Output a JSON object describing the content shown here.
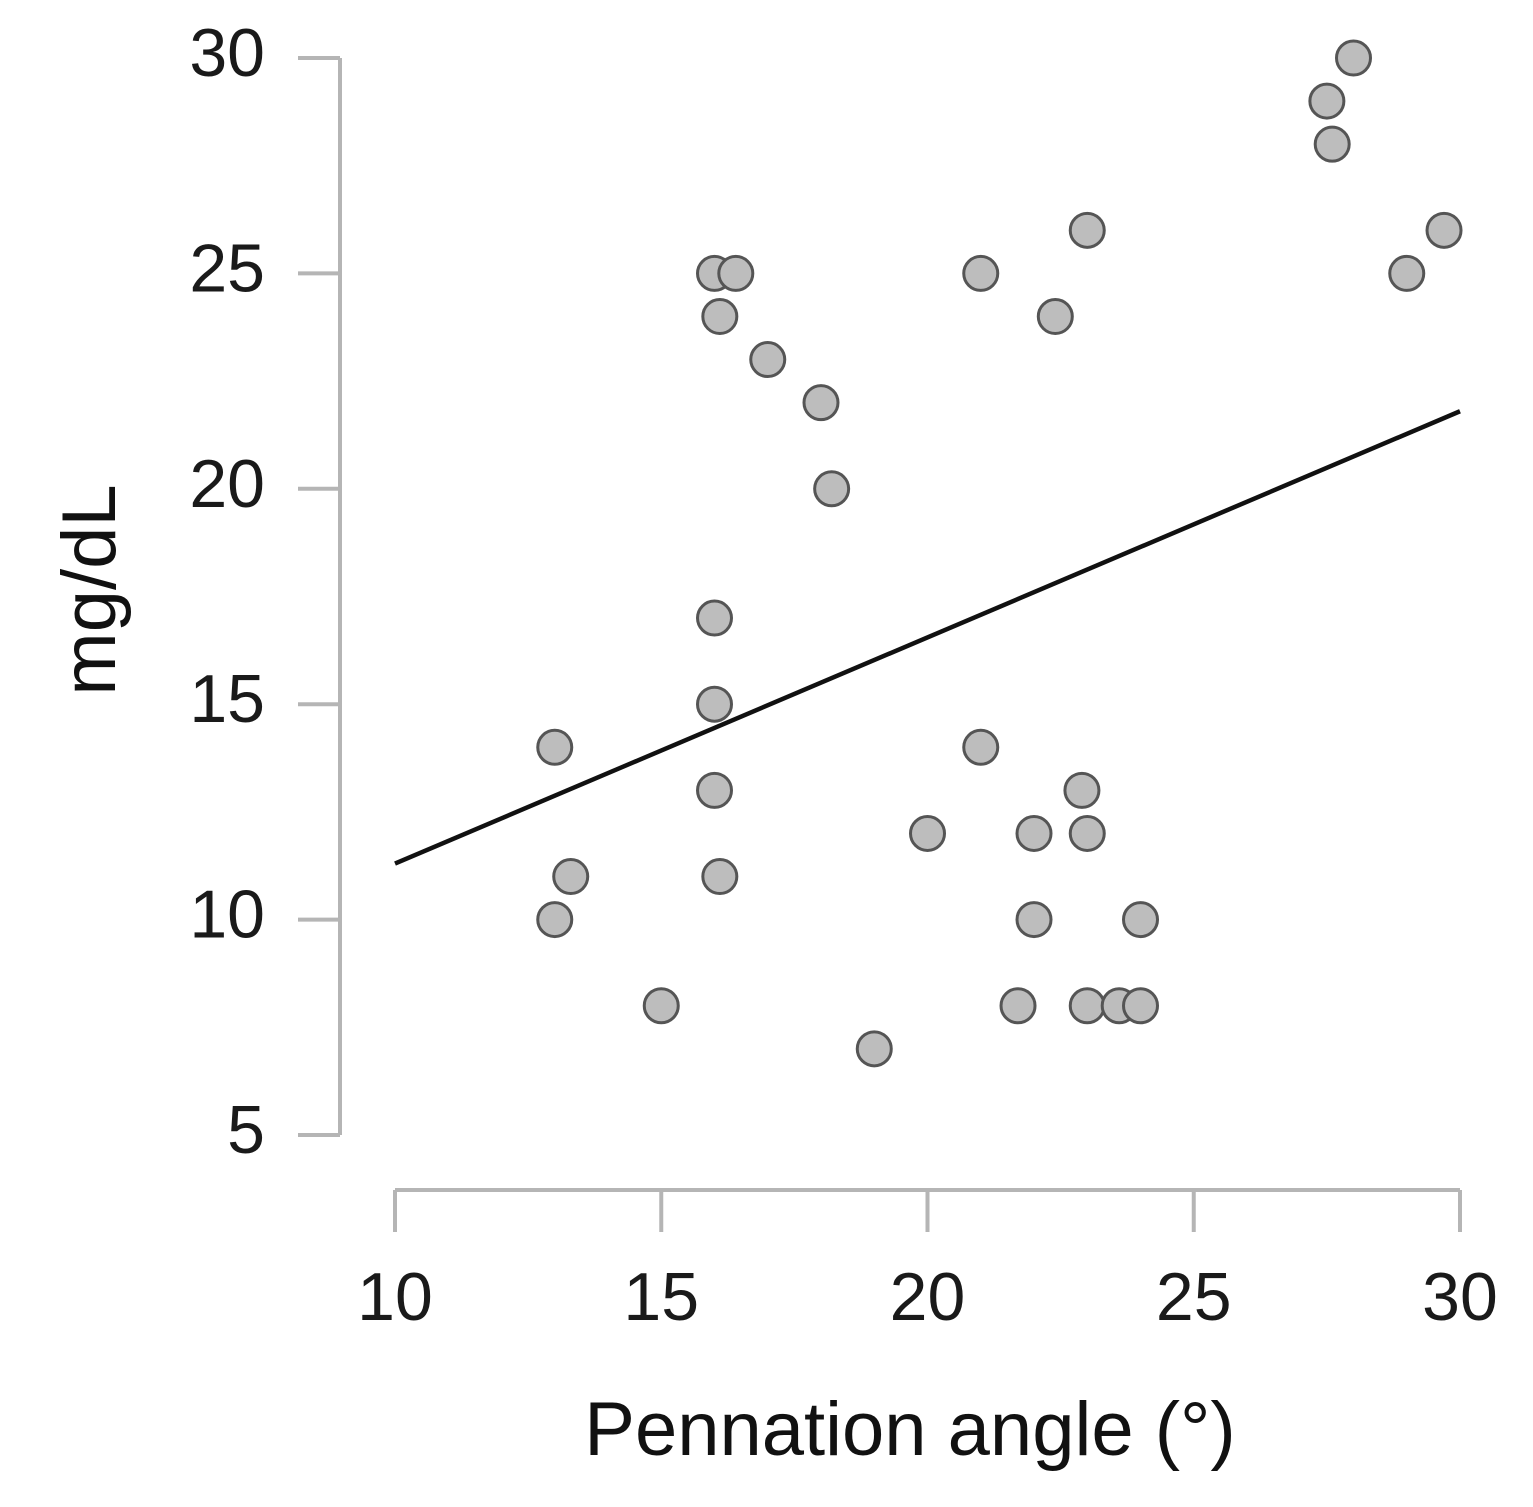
{
  "chart_data": {
    "type": "scatter",
    "title": "",
    "xlabel": "Pennation angle (°)",
    "ylabel": "mg/dL",
    "xlim": [
      10,
      30
    ],
    "ylim": [
      5,
      30
    ],
    "xticks": [
      10,
      15,
      20,
      25,
      30
    ],
    "yticks": [
      5,
      10,
      15,
      20,
      25,
      30
    ],
    "grid": false,
    "legend": "none",
    "point_color": "#bdbdbd",
    "point_edge_color": "#555555",
    "axis_color": "#b5b5b5",
    "line_color": "#111111",
    "points": [
      {
        "x": 13.0,
        "y": 14
      },
      {
        "x": 13.3,
        "y": 11
      },
      {
        "x": 13.0,
        "y": 10
      },
      {
        "x": 15.0,
        "y": 8
      },
      {
        "x": 16.0,
        "y": 25
      },
      {
        "x": 16.4,
        "y": 25
      },
      {
        "x": 16.1,
        "y": 24
      },
      {
        "x": 17.0,
        "y": 23
      },
      {
        "x": 18.0,
        "y": 22
      },
      {
        "x": 18.2,
        "y": 20
      },
      {
        "x": 16.0,
        "y": 17
      },
      {
        "x": 16.0,
        "y": 15
      },
      {
        "x": 16.0,
        "y": 13
      },
      {
        "x": 16.1,
        "y": 11
      },
      {
        "x": 19.0,
        "y": 7
      },
      {
        "x": 20.0,
        "y": 12
      },
      {
        "x": 21.0,
        "y": 25
      },
      {
        "x": 21.0,
        "y": 14
      },
      {
        "x": 22.4,
        "y": 24
      },
      {
        "x": 23.0,
        "y": 26
      },
      {
        "x": 22.0,
        "y": 12
      },
      {
        "x": 22.0,
        "y": 10
      },
      {
        "x": 21.7,
        "y": 8
      },
      {
        "x": 22.9,
        "y": 13
      },
      {
        "x": 23.0,
        "y": 12
      },
      {
        "x": 23.0,
        "y": 8
      },
      {
        "x": 23.6,
        "y": 8
      },
      {
        "x": 24.0,
        "y": 8
      },
      {
        "x": 24.0,
        "y": 10
      },
      {
        "x": 27.5,
        "y": 29
      },
      {
        "x": 28.0,
        "y": 30
      },
      {
        "x": 27.6,
        "y": 28
      },
      {
        "x": 29.0,
        "y": 25
      },
      {
        "x": 29.7,
        "y": 26
      }
    ],
    "fit_line": {
      "x": [
        10,
        30
      ],
      "y": [
        11.3,
        21.8
      ]
    }
  }
}
